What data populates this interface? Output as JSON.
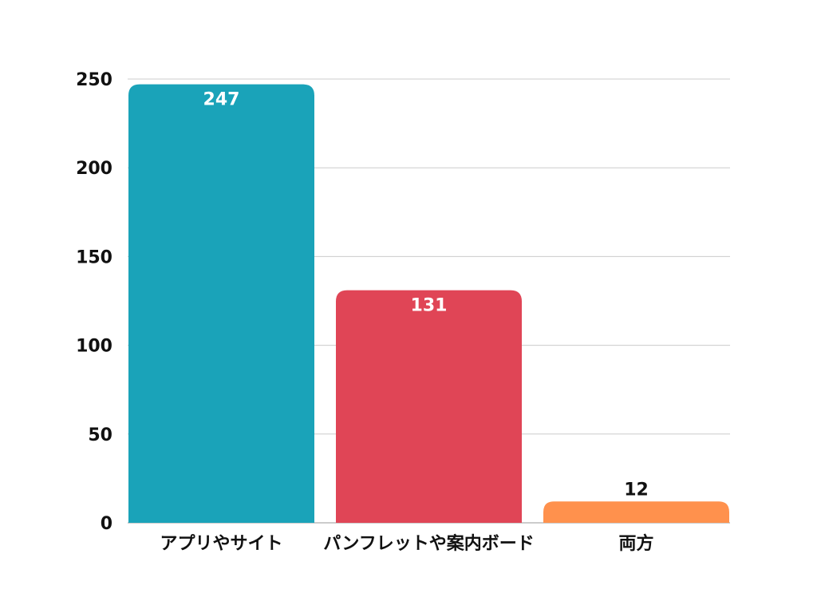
{
  "chart_data": {
    "type": "bar",
    "title": "",
    "xlabel": "",
    "ylabel": "",
    "categories": [
      "アプリやサイト",
      "パンフレットや案内ボード",
      "両方"
    ],
    "values": [
      247,
      131,
      12
    ],
    "colors": [
      "#1aa3b9",
      "#e04556",
      "#ff914d"
    ],
    "value_label_colors": [
      "#ffffff",
      "#ffffff",
      "#111111"
    ],
    "ylim": [
      0,
      250
    ],
    "yticks": [
      0,
      50,
      100,
      150,
      200,
      250
    ],
    "grid": true,
    "legend": "none"
  }
}
